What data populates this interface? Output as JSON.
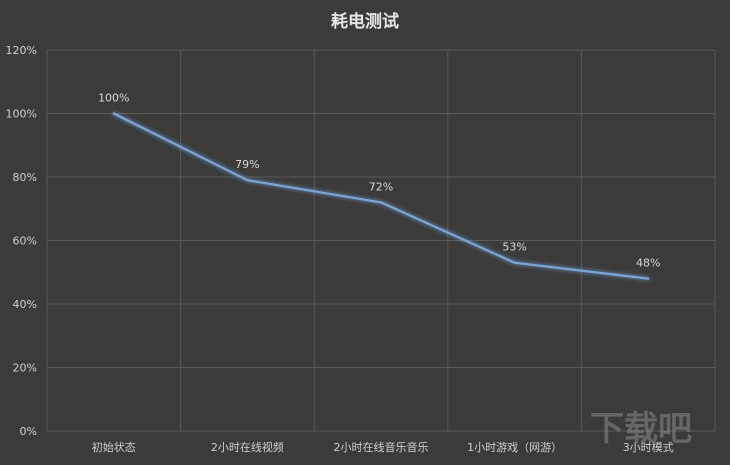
{
  "chart_data": {
    "type": "line",
    "title": "耗电测试",
    "categories": [
      "初始状态",
      "2小时在线视频",
      "2小时在线音乐音乐",
      "1小时游戏（网游）",
      "3小时模式"
    ],
    "series": [
      {
        "values": [
          100,
          79,
          72,
          53,
          48
        ],
        "labels": [
          "100%",
          "79%",
          "72%",
          "53%",
          "48%"
        ]
      }
    ],
    "ylim": [
      0,
      120
    ],
    "yticks": [
      0,
      20,
      40,
      60,
      80,
      100,
      120
    ],
    "ytick_labels": [
      "0%",
      "20%",
      "40%",
      "60%",
      "80%",
      "100%",
      "120%"
    ],
    "xlabel": "",
    "ylabel": "",
    "grid": true,
    "legend": "none",
    "colors": {
      "background": "#3b3b3b",
      "line": "#7aa6d8",
      "grid": "#5a5a5a"
    }
  },
  "watermark": {
    "text": "下载吧"
  }
}
